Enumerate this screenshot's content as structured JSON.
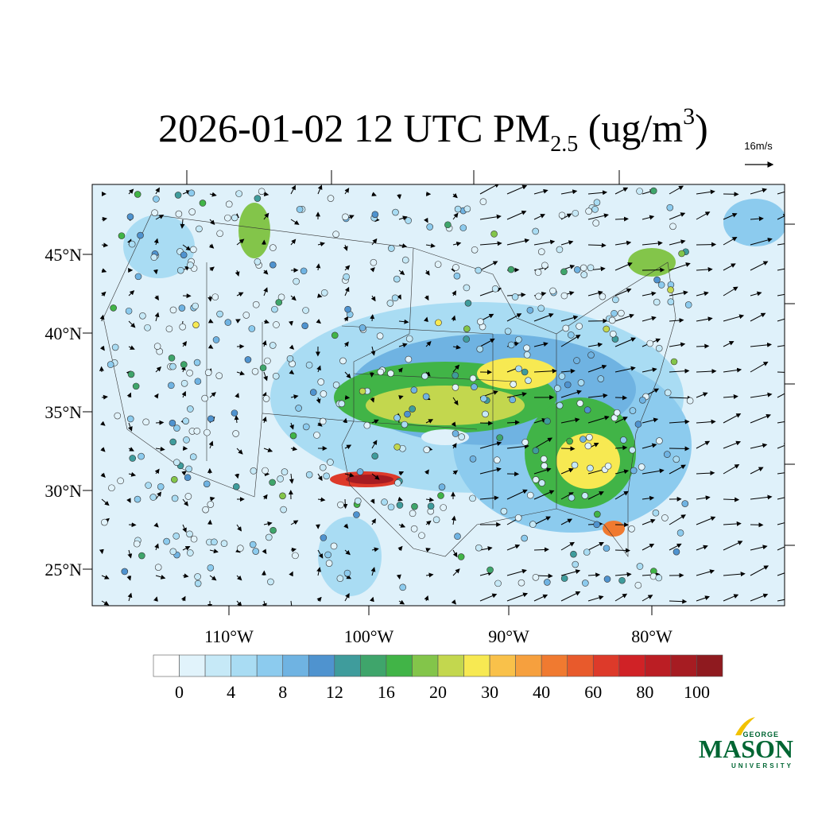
{
  "title": {
    "main": "2026-01-02 12 UTC PM",
    "subscript": "2.5",
    "unit_open": " (ug/m",
    "superscript": "3",
    "unit_close": ")"
  },
  "wind_reference": "16m/s",
  "latitude_labels": [
    "45°N",
    "40°N",
    "35°N",
    "30°N",
    "25°N"
  ],
  "longitude_labels": [
    "110°W",
    "100°W",
    "90°W",
    "80°W"
  ],
  "colorbar": {
    "colors": [
      "#ffffff",
      "#e1f3fb",
      "#c6e9f7",
      "#a9dcf3",
      "#8ccbee",
      "#6fb3e2",
      "#4f93cf",
      "#3f9c9c",
      "#3fa56b",
      "#41b447",
      "#83c54a",
      "#c3d74e",
      "#f7e952",
      "#f9c14a",
      "#f6a03e",
      "#f07a30",
      "#e85a2c",
      "#dd3a2a",
      "#d02226",
      "#bb1e24",
      "#a61c22",
      "#8f1a1f"
    ],
    "labels": [
      "0",
      "4",
      "8",
      "12",
      "16",
      "20",
      "30",
      "40",
      "60",
      "80",
      "100"
    ]
  },
  "logo": {
    "top": "GEORGE",
    "main": "MASON",
    "bottom": "UNIVERSITY"
  }
}
